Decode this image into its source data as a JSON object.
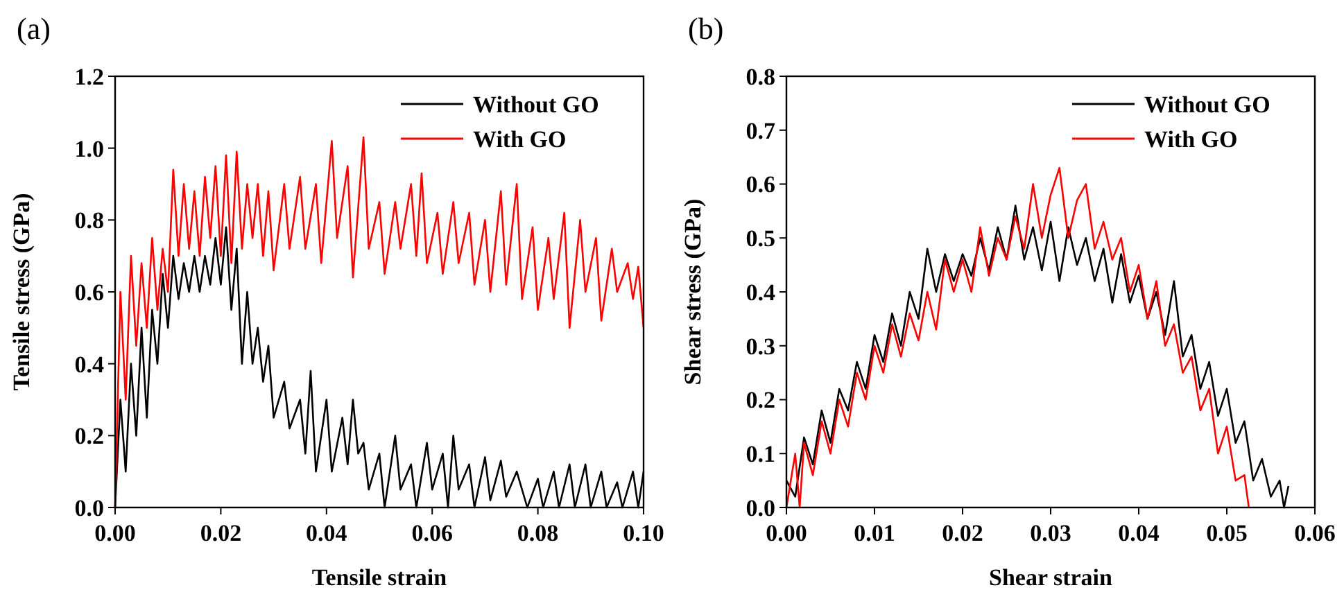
{
  "chart_data": [
    {
      "type": "line",
      "title": "(a)",
      "xlabel": "Tensile strain",
      "ylabel": "Tensile stress (GPa)",
      "xlim": [
        0,
        0.1
      ],
      "xticks": [
        {
          "value": 0,
          "label": "0.00"
        },
        {
          "value": 0.02,
          "label": "0.02"
        },
        {
          "value": 0.04,
          "label": "0.04"
        },
        {
          "value": 0.06,
          "label": "0.06"
        },
        {
          "value": 0.08,
          "label": "0.08"
        },
        {
          "value": 0.1,
          "label": "0.10"
        }
      ],
      "ylim": [
        0,
        1.2
      ],
      "yticks": [
        {
          "value": 0,
          "label": "0.0"
        },
        {
          "value": 0.2,
          "label": "0.2"
        },
        {
          "value": 0.4,
          "label": "0.4"
        },
        {
          "value": 0.6,
          "label": "0.6"
        },
        {
          "value": 0.8,
          "label": "0.8"
        },
        {
          "value": 1,
          "label": "1.0"
        },
        {
          "value": 1.2,
          "label": "1.2"
        }
      ],
      "grid": false,
      "legend": "top right",
      "line_style": "solid",
      "series": [
        {
          "name": "Without GO",
          "color": "#000000",
          "x": [
            0,
            0.001,
            0.002,
            0.003,
            0.004,
            0.005,
            0.006,
            0.007,
            0.008,
            0.009,
            0.01,
            0.011,
            0.012,
            0.013,
            0.014,
            0.015,
            0.016,
            0.017,
            0.018,
            0.019,
            0.02,
            0.021,
            0.022,
            0.023,
            0.024,
            0.025,
            0.026,
            0.027,
            0.028,
            0.029,
            0.03,
            0.032,
            0.033,
            0.035,
            0.036,
            0.037,
            0.038,
            0.04,
            0.041,
            0.043,
            0.044,
            0.045,
            0.046,
            0.047,
            0.048,
            0.05,
            0.051,
            0.053,
            0.054,
            0.056,
            0.057,
            0.059,
            0.06,
            0.062,
            0.063,
            0.064,
            0.065,
            0.067,
            0.068,
            0.07,
            0.071,
            0.073,
            0.074,
            0.076,
            0.078,
            0.08,
            0.081,
            0.083,
            0.084,
            0.086,
            0.087,
            0.089,
            0.09,
            0.092,
            0.093,
            0.095,
            0.096,
            0.098,
            0.099,
            0.1
          ],
          "values": [
            0,
            0.3,
            0.1,
            0.4,
            0.2,
            0.5,
            0.25,
            0.55,
            0.4,
            0.65,
            0.5,
            0.7,
            0.58,
            0.68,
            0.6,
            0.7,
            0.6,
            0.7,
            0.62,
            0.75,
            0.62,
            0.78,
            0.55,
            0.72,
            0.4,
            0.6,
            0.4,
            0.5,
            0.35,
            0.45,
            0.25,
            0.35,
            0.22,
            0.3,
            0.15,
            0.38,
            0.1,
            0.3,
            0.1,
            0.25,
            0.12,
            0.3,
            0.15,
            0.18,
            0.05,
            0.15,
            0,
            0.2,
            0.05,
            0.12,
            0,
            0.18,
            0.05,
            0.15,
            0,
            0.2,
            0.05,
            0.12,
            0,
            0.14,
            0.02,
            0.13,
            0.03,
            0.1,
            0,
            0.08,
            0,
            0.1,
            0,
            0.12,
            0,
            0.12,
            0,
            0.1,
            0,
            0.07,
            0,
            0.1,
            0,
            0.1
          ]
        },
        {
          "name": "With GO",
          "color": "#ff0000",
          "x": [
            0,
            0.001,
            0.002,
            0.003,
            0.004,
            0.005,
            0.006,
            0.007,
            0.008,
            0.009,
            0.01,
            0.011,
            0.012,
            0.013,
            0.014,
            0.015,
            0.016,
            0.017,
            0.018,
            0.019,
            0.02,
            0.021,
            0.022,
            0.023,
            0.024,
            0.025,
            0.026,
            0.027,
            0.028,
            0.029,
            0.03,
            0.032,
            0.033,
            0.035,
            0.036,
            0.038,
            0.039,
            0.041,
            0.042,
            0.044,
            0.045,
            0.047,
            0.048,
            0.05,
            0.051,
            0.053,
            0.054,
            0.056,
            0.057,
            0.058,
            0.059,
            0.061,
            0.062,
            0.064,
            0.065,
            0.067,
            0.068,
            0.07,
            0.071,
            0.073,
            0.074,
            0.076,
            0.077,
            0.079,
            0.08,
            0.082,
            0.083,
            0.085,
            0.086,
            0.088,
            0.089,
            0.091,
            0.092,
            0.094,
            0.095,
            0.097,
            0.098,
            0.099,
            0.1
          ],
          "values": [
            0,
            0.6,
            0.3,
            0.7,
            0.45,
            0.68,
            0.5,
            0.75,
            0.55,
            0.72,
            0.6,
            0.94,
            0.7,
            0.9,
            0.72,
            0.88,
            0.7,
            0.92,
            0.75,
            0.95,
            0.7,
            0.98,
            0.68,
            0.99,
            0.72,
            0.9,
            0.75,
            0.9,
            0.7,
            0.88,
            0.66,
            0.9,
            0.72,
            0.92,
            0.72,
            0.9,
            0.68,
            1.02,
            0.75,
            0.95,
            0.64,
            1.03,
            0.72,
            0.85,
            0.65,
            0.85,
            0.72,
            0.9,
            0.7,
            0.93,
            0.68,
            0.82,
            0.65,
            0.85,
            0.68,
            0.82,
            0.62,
            0.8,
            0.6,
            0.88,
            0.62,
            0.9,
            0.58,
            0.78,
            0.55,
            0.75,
            0.58,
            0.82,
            0.5,
            0.8,
            0.6,
            0.75,
            0.52,
            0.72,
            0.6,
            0.68,
            0.58,
            0.67,
            0.5
          ]
        }
      ]
    },
    {
      "type": "line",
      "title": "(b)",
      "xlabel": "Shear strain",
      "ylabel": "Shear stress (GPa)",
      "xlim": [
        0,
        0.06
      ],
      "xticks": [
        {
          "value": 0,
          "label": "0.00"
        },
        {
          "value": 0.01,
          "label": "0.01"
        },
        {
          "value": 0.02,
          "label": "0.02"
        },
        {
          "value": 0.03,
          "label": "0.03"
        },
        {
          "value": 0.04,
          "label": "0.04"
        },
        {
          "value": 0.05,
          "label": "0.05"
        },
        {
          "value": 0.06,
          "label": "0.06"
        }
      ],
      "ylim": [
        0,
        0.8
      ],
      "yticks": [
        {
          "value": 0,
          "label": "0.0"
        },
        0.1,
        0.2,
        0.3,
        0.4,
        0.5,
        0.6,
        0.7,
        0.8
      ],
      "grid": false,
      "legend": "top right",
      "line_style": "solid",
      "series": [
        {
          "name": "Without GO",
          "color": "#000000",
          "x": [
            0,
            0.001,
            0.002,
            0.003,
            0.004,
            0.005,
            0.006,
            0.007,
            0.008,
            0.009,
            0.01,
            0.011,
            0.012,
            0.013,
            0.014,
            0.015,
            0.016,
            0.017,
            0.018,
            0.019,
            0.02,
            0.021,
            0.022,
            0.023,
            0.024,
            0.025,
            0.026,
            0.027,
            0.028,
            0.029,
            0.03,
            0.031,
            0.032,
            0.033,
            0.034,
            0.035,
            0.036,
            0.037,
            0.038,
            0.039,
            0.04,
            0.041,
            0.042,
            0.043,
            0.044,
            0.045,
            0.046,
            0.047,
            0.048,
            0.049,
            0.05,
            0.051,
            0.052,
            0.053,
            0.054,
            0.055,
            0.056,
            0.0565,
            0.057
          ],
          "values": [
            0.05,
            0.02,
            0.13,
            0.08,
            0.18,
            0.12,
            0.22,
            0.18,
            0.27,
            0.22,
            0.32,
            0.27,
            0.36,
            0.3,
            0.4,
            0.35,
            0.48,
            0.4,
            0.47,
            0.42,
            0.47,
            0.43,
            0.5,
            0.44,
            0.52,
            0.46,
            0.56,
            0.46,
            0.52,
            0.44,
            0.53,
            0.42,
            0.52,
            0.45,
            0.5,
            0.42,
            0.48,
            0.38,
            0.47,
            0.38,
            0.43,
            0.35,
            0.4,
            0.32,
            0.42,
            0.28,
            0.32,
            0.22,
            0.27,
            0.17,
            0.22,
            0.12,
            0.16,
            0.05,
            0.09,
            0.02,
            0.05,
            0,
            0.04
          ]
        },
        {
          "name": "With GO",
          "color": "#ff0000",
          "x": [
            0,
            0.001,
            0.0015,
            0.002,
            0.003,
            0.004,
            0.005,
            0.006,
            0.007,
            0.008,
            0.009,
            0.01,
            0.011,
            0.012,
            0.013,
            0.014,
            0.015,
            0.016,
            0.017,
            0.018,
            0.019,
            0.02,
            0.021,
            0.022,
            0.023,
            0.024,
            0.025,
            0.026,
            0.027,
            0.028,
            0.029,
            0.03,
            0.031,
            0.032,
            0.033,
            0.034,
            0.035,
            0.036,
            0.037,
            0.038,
            0.039,
            0.04,
            0.041,
            0.042,
            0.043,
            0.044,
            0.045,
            0.046,
            0.047,
            0.048,
            0.049,
            0.05,
            0.051,
            0.052,
            0.0525
          ],
          "values": [
            0,
            0.1,
            0,
            0.12,
            0.06,
            0.16,
            0.1,
            0.2,
            0.15,
            0.25,
            0.2,
            0.3,
            0.25,
            0.34,
            0.28,
            0.36,
            0.31,
            0.4,
            0.33,
            0.46,
            0.4,
            0.46,
            0.4,
            0.52,
            0.43,
            0.5,
            0.46,
            0.54,
            0.48,
            0.6,
            0.5,
            0.58,
            0.63,
            0.5,
            0.57,
            0.6,
            0.48,
            0.53,
            0.46,
            0.5,
            0.4,
            0.45,
            0.35,
            0.42,
            0.3,
            0.34,
            0.25,
            0.28,
            0.18,
            0.22,
            0.1,
            0.15,
            0.05,
            0.06,
            0
          ]
        }
      ]
    }
  ]
}
